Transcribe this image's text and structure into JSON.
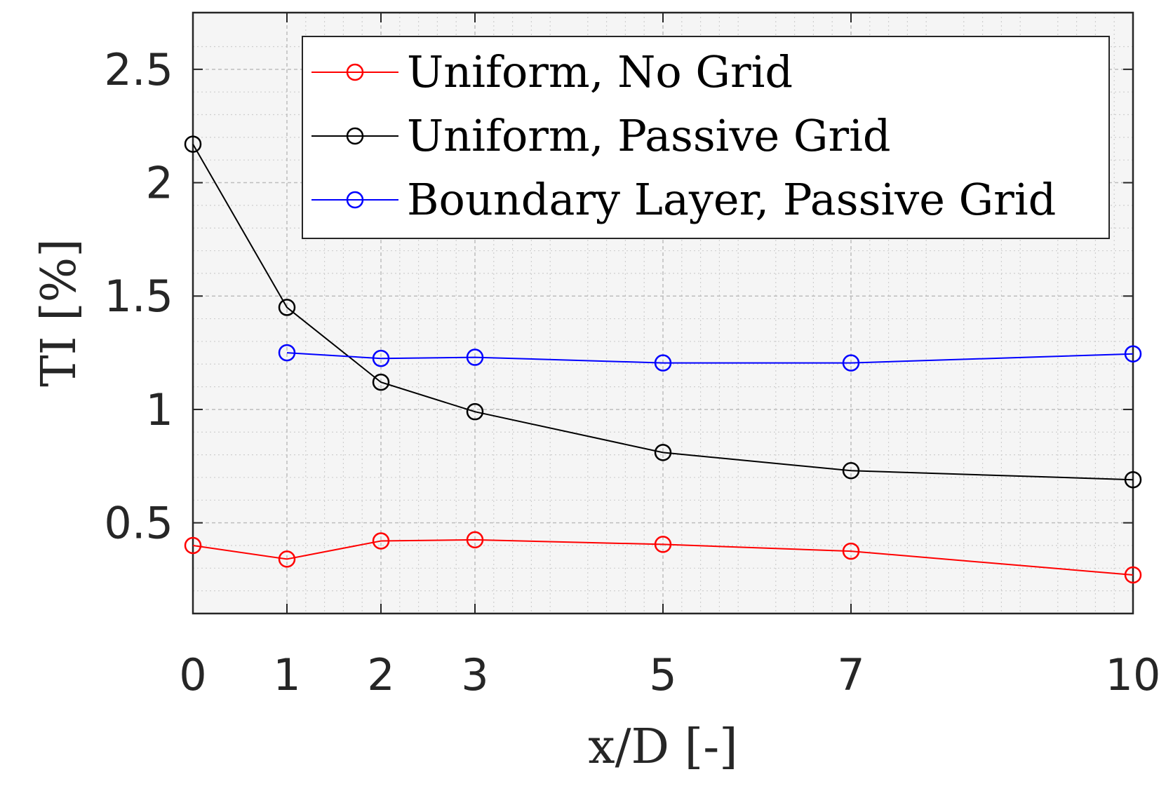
{
  "chart_data": {
    "type": "line",
    "xlabel": "x/D [-]",
    "ylabel": "TI [%]",
    "xlim": [
      0,
      10
    ],
    "ylim": [
      0.1,
      2.75
    ],
    "xticks": [
      0,
      1,
      2,
      3,
      5,
      7,
      10
    ],
    "xtick_labels": [
      "0",
      "1",
      "2",
      "3",
      "5",
      "7",
      "10"
    ],
    "yticks": [
      0.5,
      1,
      1.5,
      2,
      2.5
    ],
    "ytick_labels": [
      "0.5",
      "1",
      "1.5",
      "2",
      "2.5"
    ],
    "grid": true,
    "minor_grid": true,
    "legend_position": "top-right",
    "series": [
      {
        "name": "Uniform, No Grid",
        "color": "#ff0000",
        "marker": "circle",
        "x": [
          0,
          1,
          2,
          3,
          5,
          7,
          10
        ],
        "y": [
          0.4,
          0.34,
          0.42,
          0.425,
          0.405,
          0.375,
          0.27
        ]
      },
      {
        "name": "Uniform, Passive Grid",
        "color": "#000000",
        "marker": "circle",
        "x": [
          0,
          1,
          2,
          3,
          5,
          7,
          10
        ],
        "y": [
          2.17,
          1.45,
          1.12,
          0.99,
          0.81,
          0.73,
          0.69
        ]
      },
      {
        "name": "Boundary Layer, Passive Grid",
        "color": "#0000ff",
        "marker": "circle",
        "x": [
          1,
          2,
          3,
          5,
          7,
          10
        ],
        "y": [
          1.25,
          1.225,
          1.23,
          1.205,
          1.205,
          1.245
        ]
      }
    ]
  }
}
